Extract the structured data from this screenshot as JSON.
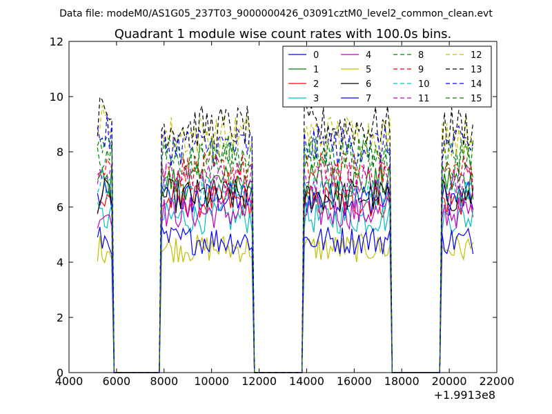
{
  "header": {
    "data_file": "Data file: modeM0/AS1G05_237T03_9000000426_03091cztM0_level2_common_clean.evt"
  },
  "chart_data": {
    "type": "line",
    "title": "Quadrant 1 module wise count rates with 100.0s bins.",
    "xlabel": "",
    "ylabel": "",
    "xlim": [
      4000,
      22000
    ],
    "ylim": [
      0,
      12
    ],
    "x_offset_label": "+1.9913e8",
    "xticks": [
      4000,
      6000,
      8000,
      10000,
      12000,
      14000,
      16000,
      18000,
      20000,
      22000
    ],
    "yticks": [
      0,
      2,
      4,
      6,
      8,
      10,
      12
    ],
    "grid": false,
    "legend": "top-right",
    "segments": [
      {
        "x_start": 5200,
        "x_end": 5800
      },
      {
        "x_start": 7900,
        "x_end": 11700
      },
      {
        "x_start": 13900,
        "x_end": 17500
      },
      {
        "x_start": 19700,
        "x_end": 21000
      }
    ],
    "gap_value": 0,
    "series": [
      {
        "name": "0",
        "color": "#0000ff",
        "dash": "solid",
        "level": 6.3
      },
      {
        "name": "1",
        "color": "#008000",
        "dash": "solid",
        "level": 6.9
      },
      {
        "name": "2",
        "color": "#ff0000",
        "dash": "solid",
        "level": 6.2
      },
      {
        "name": "3",
        "color": "#00bfbf",
        "dash": "solid",
        "level": 5.6
      },
      {
        "name": "4",
        "color": "#bf00bf",
        "dash": "solid",
        "level": 5.8
      },
      {
        "name": "5",
        "color": "#bfbf00",
        "dash": "solid",
        "level": 4.5
      },
      {
        "name": "6",
        "color": "#000000",
        "dash": "solid",
        "level": 6.4
      },
      {
        "name": "7",
        "color": "#0000ff",
        "dash": "solid",
        "level": 4.8
      },
      {
        "name": "8",
        "color": "#008000",
        "dash": "dashed",
        "level": 7.7
      },
      {
        "name": "9",
        "color": "#ff0000",
        "dash": "dashed",
        "level": 7.3
      },
      {
        "name": "10",
        "color": "#00bfbf",
        "dash": "dashed",
        "level": 6.5
      },
      {
        "name": "11",
        "color": "#bf00bf",
        "dash": "dashed",
        "level": 7.0
      },
      {
        "name": "12",
        "color": "#bfbf00",
        "dash": "dashed",
        "level": 8.6
      },
      {
        "name": "13",
        "color": "#000000",
        "dash": "dashed",
        "level": 8.9
      },
      {
        "name": "14",
        "color": "#0000ff",
        "dash": "dashed",
        "level": 8.2
      },
      {
        "name": "15",
        "color": "#008000",
        "dash": "dashed",
        "level": 7.9
      }
    ]
  }
}
